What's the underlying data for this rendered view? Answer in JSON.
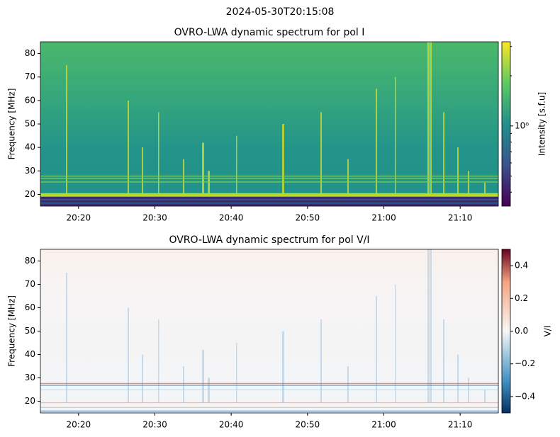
{
  "suptitle": "2024-05-30T20:15:08",
  "chart_data": [
    {
      "type": "heatmap",
      "title": "OVRO-LWA dynamic spectrum for pol I",
      "ylabel": "Frequency [MHz]",
      "xlim": [
        "20:15",
        "21:15"
      ],
      "xticks": [
        "20:20",
        "20:30",
        "20:40",
        "20:50",
        "21:00",
        "21:10"
      ],
      "ylim": [
        15,
        85
      ],
      "yticks": [
        20,
        30,
        40,
        50,
        60,
        70,
        80
      ],
      "colorbar": {
        "label": "Intensity [s.f.u]",
        "colormap": "viridis",
        "log": true,
        "lim": [
          0.33,
          3.2
        ],
        "ticks": [
          {
            "value": 1,
            "label": "10⁰"
          }
        ],
        "minorticks": [
          0.4,
          0.5,
          0.6,
          0.7,
          0.8,
          0.9,
          2,
          3
        ]
      }
    },
    {
      "type": "heatmap",
      "title": "OVRO-LWA dynamic spectrum for pol V/I",
      "ylabel": "Frequency [MHz]",
      "xlim": [
        "20:15",
        "21:15"
      ],
      "xticks": [
        "20:20",
        "20:30",
        "20:40",
        "20:50",
        "21:00",
        "21:10"
      ],
      "ylim": [
        15,
        85
      ],
      "yticks": [
        20,
        30,
        40,
        50,
        60,
        70,
        80
      ],
      "colorbar": {
        "label": "V/I",
        "colormap": "RdBu_r",
        "log": false,
        "lim": [
          -0.5,
          0.5
        ],
        "ticks": [
          {
            "value": -0.4,
            "label": "−0.4"
          },
          {
            "value": -0.2,
            "label": "−0.2"
          },
          {
            "value": 0,
            "label": "0.0"
          },
          {
            "value": 0.2,
            "label": "0.2"
          },
          {
            "value": 0.4,
            "label": "0.4"
          }
        ]
      }
    }
  ]
}
